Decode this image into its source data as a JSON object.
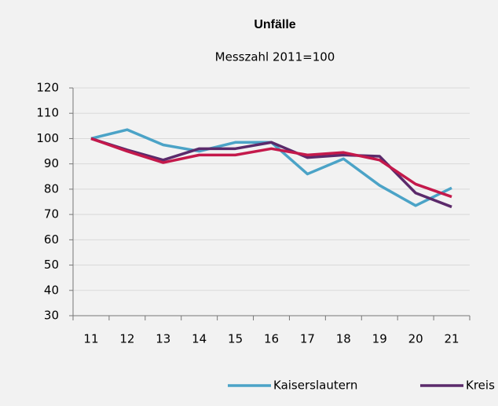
{
  "chart_data": {
    "type": "line",
    "title": "Unfälle",
    "subtitle": "Messzahl 2011=100",
    "categories": [
      "11",
      "12",
      "13",
      "14",
      "15",
      "16",
      "17",
      "18",
      "19",
      "20",
      "21"
    ],
    "series": [
      {
        "name": "Kaiserslautern",
        "color": "#4ba3c7",
        "values": [
          100,
          103.5,
          97.5,
          95,
          98.5,
          98.5,
          86,
          92,
          81.5,
          73.5,
          80.5
        ]
      },
      {
        "name": "Kreis",
        "color": "#5b2a6b",
        "values": [
          100,
          95.5,
          91.5,
          96,
          96,
          98.5,
          92.5,
          93.5,
          93,
          78.5,
          73
        ]
      },
      {
        "color": "#c4194b",
        "values": [
          100,
          95,
          90.5,
          93.5,
          93.5,
          96,
          93.5,
          94.5,
          91.5,
          82,
          77
        ]
      }
    ],
    "ylim": [
      30,
      120
    ],
    "yticks": [
      30,
      40,
      50,
      60,
      70,
      80,
      90,
      100,
      110,
      120
    ],
    "grid": true
  }
}
